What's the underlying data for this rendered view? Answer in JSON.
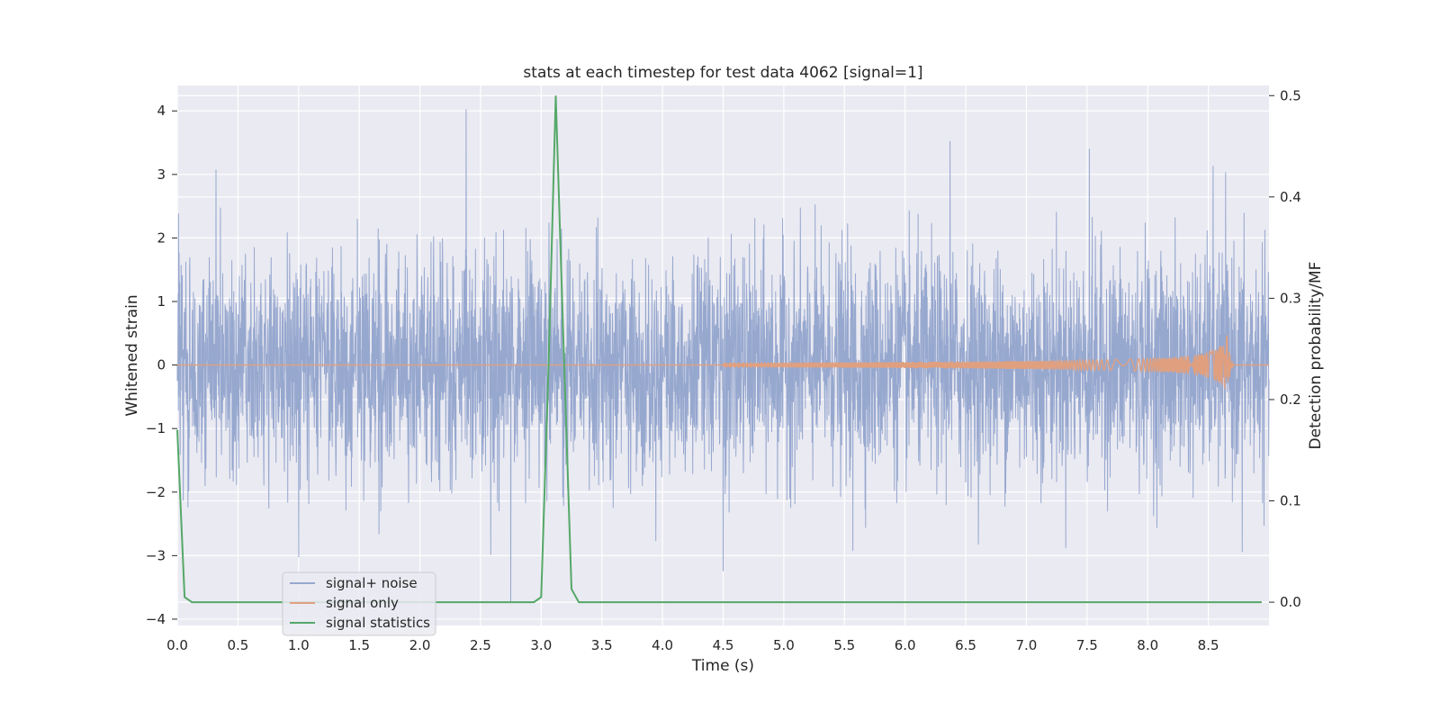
{
  "chart_data": {
    "type": "line",
    "title": "stats at each timestep for test data 4062 [signal=1]",
    "xlabel": "Time (s)",
    "ylabel_left": "Whitened strain",
    "ylabel_right": "Detection probability/MF",
    "xlim": [
      0.0,
      9.0
    ],
    "ylim_left": [
      -4.1,
      4.4
    ],
    "ylim_right": [
      -0.023,
      0.51
    ],
    "x_ticks": [
      "0.0",
      "0.5",
      "1.0",
      "1.5",
      "2.0",
      "2.5",
      "3.0",
      "3.5",
      "4.0",
      "4.5",
      "5.0",
      "5.5",
      "6.0",
      "6.5",
      "7.0",
      "7.5",
      "8.0",
      "8.5"
    ],
    "y_ticks_left": [
      "4",
      "3",
      "2",
      "1",
      "0",
      "−1",
      "−2",
      "−3",
      "−4"
    ],
    "y_ticks_right": [
      "0.5",
      "0.4",
      "0.3",
      "0.2",
      "0.1",
      "0.0"
    ],
    "grid": true,
    "legend_position": "lower-left",
    "colors": {
      "signal_plus_noise": "#97a8cf",
      "signal_only": "#e0a07f",
      "signal_statistics": "#55a868",
      "background": "#eaeaf2",
      "grid": "#ffffff"
    },
    "series": [
      {
        "name": "signal+ noise",
        "axis": "left",
        "description_values": "whitened strain noise, amplitude ~N(0,0.8), peaks near +4.0 at t=2.38 and -3.7 at t=2.75",
        "peaks": [
          [
            0.01,
            2.38
          ],
          [
            0.32,
            3.07
          ],
          [
            2.38,
            4.02
          ],
          [
            2.75,
            -3.72
          ],
          [
            1.0,
            -3.02
          ],
          [
            4.5,
            -3.24
          ],
          [
            6.37,
            3.52
          ],
          [
            7.52,
            3.4
          ],
          [
            8.54,
            3.13
          ],
          [
            8.78,
            3.1
          ],
          [
            5.57,
            -2.92
          ],
          [
            8.78,
            -2.94
          ]
        ]
      },
      {
        "name": "signal only",
        "axis": "left",
        "chirp": {
          "start": 4.5,
          "merger": 8.66,
          "peak_amplitude": 0.5
        }
      },
      {
        "name": "signal statistics",
        "axis": "right",
        "x": [
          0.0,
          0.06,
          0.12,
          0.5,
          1.0,
          1.5,
          2.0,
          2.5,
          2.94,
          3.0,
          3.06,
          3.12,
          3.18,
          3.25,
          3.31,
          3.5,
          4.0,
          5.0,
          6.0,
          7.0,
          8.0,
          8.94
        ],
        "values": [
          0.17,
          0.005,
          0.0,
          0.0,
          0.0,
          0.0,
          0.0,
          0.0,
          0.0,
          0.005,
          0.23,
          0.5,
          0.27,
          0.013,
          0.0,
          0.0,
          0.0,
          0.0,
          0.0,
          0.0,
          0.0,
          0.0
        ]
      }
    ],
    "legend": {
      "items": [
        {
          "label": "signal+ noise",
          "color": "#97a8cf"
        },
        {
          "label": "signal only",
          "color": "#e0a07f"
        },
        {
          "label": "signal statistics",
          "color": "#55a868"
        }
      ]
    }
  }
}
